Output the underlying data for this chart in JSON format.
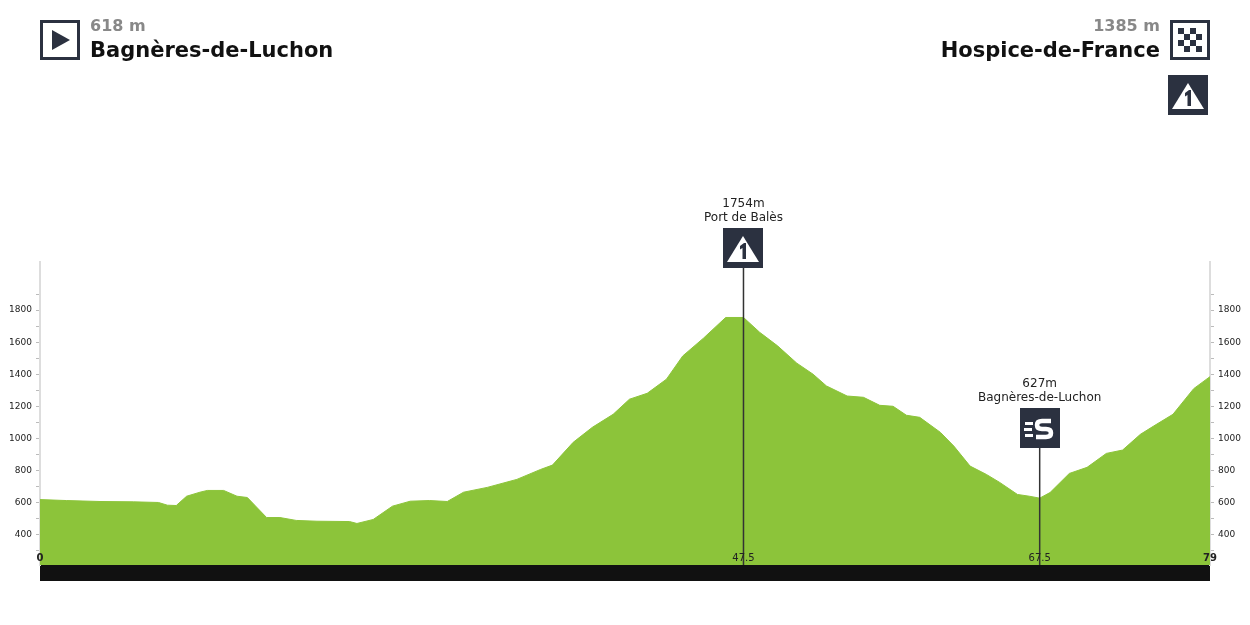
{
  "chart_data": {
    "type": "area",
    "x": [
      0,
      1.8,
      4.05,
      6.3,
      8.0,
      8.6,
      9.2,
      9.9,
      10.8,
      11.3,
      12.4,
      13.3,
      14.0,
      15.3,
      16.2,
      17.3,
      18.7,
      20.9,
      21.4,
      22.5,
      23.8,
      25.0,
      26.3,
      27.5,
      28.6,
      30.2,
      32.2,
      33.8,
      34.6,
      36.0,
      37.3,
      38.7,
      39.8,
      41.0,
      42.3,
      43.4,
      44.8,
      46.3,
      47.5,
      48.6,
      49.8,
      51.1,
      52.2,
      53.1,
      54.5,
      55.6,
      56.7,
      57.6,
      58.5,
      59.4,
      60.8,
      61.7,
      62.8,
      63.9,
      64.8,
      66.0,
      66.8,
      67.5,
      68.2,
      69.5,
      70.7,
      72.0,
      73.1,
      74.3,
      75.2,
      76.5,
      77.9,
      79
    ],
    "series": [
      {
        "color": "#8cc43a",
        "values": [
          618,
          612,
          606,
          604,
          600,
          583,
          581,
          639,
          664,
          675,
          675,
          639,
          631,
          506,
          506,
          488,
          483,
          481,
          469,
          494,
          577,
          608,
          612,
          606,
          664,
          694,
          744,
          806,
          833,
          975,
          1069,
          1150,
          1244,
          1281,
          1369,
          1514,
          1625,
          1754,
          1754,
          1661,
          1577,
          1469,
          1400,
          1327,
          1264,
          1256,
          1206,
          1200,
          1144,
          1131,
          1037,
          952,
          827,
          775,
          725,
          650,
          639,
          627,
          662,
          781,
          819,
          906,
          927,
          1025,
          1077,
          1150,
          1310,
          1385
        ]
      }
    ],
    "xlim": [
      0,
      79
    ],
    "xticks": [
      0,
      47.5,
      67.5,
      79
    ],
    "ylim": [
      210,
      2100
    ],
    "yticks": [
      {
        "value": 300,
        "label": null
      },
      400,
      {
        "value": 500,
        "label": null
      },
      600,
      {
        "value": 700,
        "label": null
      },
      800,
      {
        "value": 900,
        "label": null
      },
      1000,
      {
        "value": 1100,
        "label": null
      },
      1200,
      {
        "value": 1300,
        "label": null
      },
      1400,
      {
        "value": 1500,
        "label": null
      },
      1600,
      {
        "value": 1700,
        "label": null
      },
      1800,
      {
        "value": 1900,
        "label": null
      }
    ],
    "y2lim": [
      210,
      2100
    ],
    "y2ticks": [
      {
        "value": 300,
        "label": null
      },
      400,
      {
        "value": 500,
        "label": null
      },
      600,
      {
        "value": 700,
        "label": null
      },
      800,
      {
        "value": 900,
        "label": null
      },
      1000,
      {
        "value": 1100,
        "label": null
      },
      1200,
      {
        "value": 1300,
        "label": null
      },
      1400,
      {
        "value": 1500,
        "label": null
      },
      1600,
      {
        "value": 1700,
        "label": null
      },
      1800,
      {
        "value": 1900,
        "label": null
      }
    ],
    "ref_lines": [
      {
        "axis": "x",
        "value": 47.5,
        "color": "#333333"
      },
      {
        "axis": "x",
        "value": 67.5,
        "color": "#333333"
      }
    ],
    "annotations": [
      "618 m",
      "Bagnères-de-Luchon",
      "1385 m",
      "Hospice-de-France",
      "1754m",
      "Port de Balès",
      "627m",
      "Bagnères-de-Luchon"
    ],
    "grid": false,
    "legend": false
  }
}
